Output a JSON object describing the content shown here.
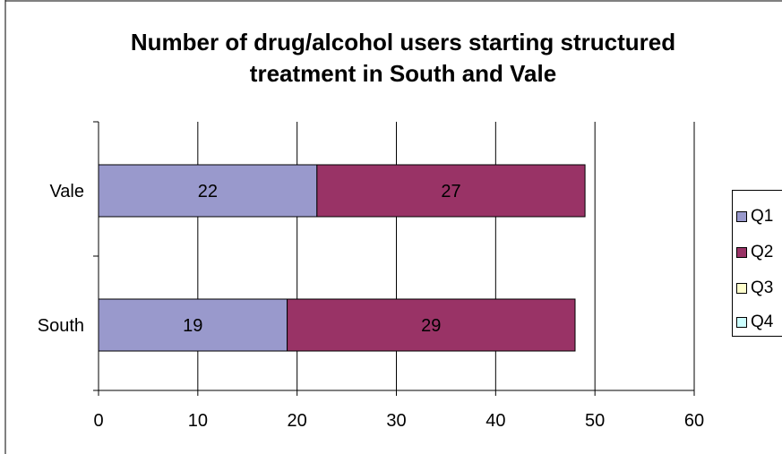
{
  "chart_data": {
    "type": "bar",
    "orientation": "horizontal",
    "stacked": true,
    "title": "Number of drug/alcohol users starting structured treatment in South and Vale",
    "title_lines": [
      "Number of drug/alcohol users starting structured",
      "treatment in South and Vale"
    ],
    "categories": [
      "Vale",
      "South"
    ],
    "series": [
      {
        "name": "Q1",
        "color": "#9999cc",
        "values": [
          22,
          19
        ]
      },
      {
        "name": "Q2",
        "color": "#993366",
        "values": [
          27,
          29
        ]
      },
      {
        "name": "Q3",
        "color": "#ffffcc",
        "values": [
          0,
          0
        ]
      },
      {
        "name": "Q4",
        "color": "#ccffff",
        "values": [
          0,
          0
        ]
      }
    ],
    "xlim": [
      0,
      60
    ],
    "xticks": [
      "0",
      "10",
      "20",
      "30",
      "40",
      "50",
      "60"
    ],
    "xlabel": "",
    "ylabel": "",
    "grid": true,
    "legend_position": "right"
  }
}
